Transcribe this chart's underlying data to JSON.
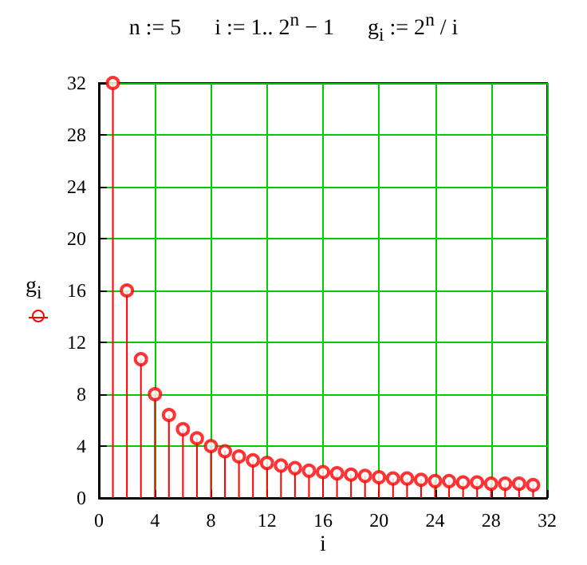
{
  "chart_data": {
    "type": "lollipop",
    "title": "n := 5      i := 1.. 2$^{n}$ − 1      g$_{i}$ := 2$^{n}$ / i",
    "xlabel": "i",
    "ylabel": "g$_{i}$",
    "x": [
      1,
      2,
      3,
      4,
      5,
      6,
      7,
      8,
      9,
      10,
      11,
      12,
      13,
      14,
      15,
      16,
      17,
      18,
      19,
      20,
      21,
      22,
      23,
      24,
      25,
      26,
      27,
      28,
      29,
      30,
      31
    ],
    "values": [
      32,
      16,
      10.7,
      8,
      6.4,
      5.3,
      4.6,
      4,
      3.6,
      3.2,
      2.9,
      2.7,
      2.5,
      2.3,
      2.1,
      2,
      1.9,
      1.8,
      1.7,
      1.6,
      1.5,
      1.5,
      1.4,
      1.3,
      1.3,
      1.2,
      1.2,
      1.1,
      1.1,
      1.1,
      1.0
    ],
    "color": "#ff0000",
    "marker": "circle",
    "grid": true,
    "xlim": [
      0,
      32
    ],
    "xticks": [
      0,
      4,
      8,
      12,
      16,
      20,
      24,
      28,
      32
    ],
    "ylim": [
      0,
      32
    ],
    "yticks": [
      0,
      4,
      8,
      12,
      16,
      20,
      24,
      28,
      32
    ]
  }
}
